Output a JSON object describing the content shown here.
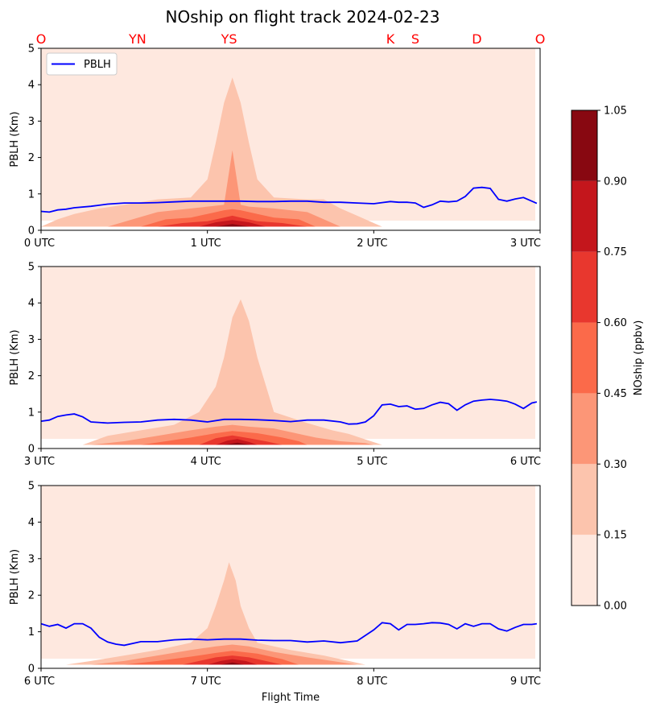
{
  "chart_data": {
    "type": "contour",
    "title": "NOship on flight track 2024-02-23",
    "xlabel": "Flight Time",
    "ylabel": "PBLH (Km)",
    "legend": {
      "entries": [
        "PBLH"
      ],
      "placement": "upper-left"
    },
    "series_color": "#0000ff",
    "stations": {
      "color": "#ff0000",
      "labels": [
        {
          "label": "O",
          "x_hours": 0.0
        },
        {
          "label": "YN",
          "x_hours": 0.58
        },
        {
          "label": "YS",
          "x_hours": 1.13
        },
        {
          "label": "K",
          "x_hours": 2.1
        },
        {
          "label": "S",
          "x_hours": 2.25
        },
        {
          "label": "D",
          "x_hours": 2.62
        },
        {
          "label": "O",
          "x_hours": 3.0
        }
      ]
    },
    "colorbar": {
      "label": "NOship (ppbv)",
      "levels": [
        0.0,
        0.15,
        0.3,
        0.45,
        0.6,
        0.75,
        0.9,
        1.05
      ],
      "tick_labels": [
        "0.00",
        "0.15",
        "0.30",
        "0.45",
        "0.60",
        "0.75",
        "0.90",
        "1.05"
      ],
      "colors": [
        "#fee8df",
        "#fcc4ad",
        "#fc9677",
        "#fb6a4a",
        "#e8372e",
        "#c4161c",
        "#880811"
      ]
    },
    "panels": [
      {
        "x_range_hours": [
          0,
          3
        ],
        "x_ticks": [
          0,
          1,
          2,
          3
        ],
        "x_tick_labels": [
          "0 UTC",
          "1 UTC",
          "2 UTC",
          "3 UTC"
        ],
        "ylim": [
          0,
          5
        ],
        "y_ticks": [
          0,
          1,
          2,
          3,
          4,
          5
        ],
        "y_tick_labels": [
          "0",
          "1",
          "2",
          "3",
          "4",
          "5"
        ],
        "pblh": {
          "x_hours": [
            0.0,
            0.05,
            0.1,
            0.15,
            0.2,
            0.3,
            0.4,
            0.5,
            0.6,
            0.7,
            0.8,
            0.9,
            1.0,
            1.1,
            1.2,
            1.3,
            1.4,
            1.5,
            1.6,
            1.7,
            1.8,
            1.9,
            2.0,
            2.05,
            2.1,
            2.15,
            2.2,
            2.25,
            2.3,
            2.35,
            2.4,
            2.45,
            2.5,
            2.55,
            2.6,
            2.65,
            2.7,
            2.75,
            2.8,
            2.85,
            2.9,
            2.95,
            2.98
          ],
          "values": [
            0.52,
            0.5,
            0.56,
            0.58,
            0.62,
            0.66,
            0.72,
            0.75,
            0.75,
            0.76,
            0.78,
            0.8,
            0.8,
            0.8,
            0.8,
            0.79,
            0.79,
            0.8,
            0.8,
            0.77,
            0.77,
            0.75,
            0.73,
            0.76,
            0.79,
            0.77,
            0.77,
            0.75,
            0.63,
            0.7,
            0.8,
            0.78,
            0.8,
            0.93,
            1.16,
            1.18,
            1.15,
            0.85,
            0.8,
            0.86,
            0.9,
            0.8,
            0.74
          ]
        },
        "contours": [
          {
            "level": 1,
            "x_hours": [
              0.0,
              0.1,
              0.2,
              0.35,
              0.5,
              0.7,
              0.9,
              1.0,
              1.05,
              1.1,
              1.15,
              1.2,
              1.25,
              1.3,
              1.4,
              1.6,
              1.7,
              1.8,
              1.9,
              2.0,
              2.05
            ],
            "values": [
              0.1,
              0.3,
              0.45,
              0.6,
              0.7,
              0.85,
              0.9,
              1.4,
              2.4,
              3.5,
              4.2,
              3.5,
              2.4,
              1.4,
              0.9,
              0.85,
              0.85,
              0.6,
              0.4,
              0.2,
              0.1
            ]
          },
          {
            "level": 2,
            "x_hours": [
              0.4,
              0.55,
              0.7,
              0.9,
              1.1,
              1.15,
              1.2,
              1.25,
              1.4,
              1.6,
              1.7,
              1.8
            ],
            "values": [
              0.1,
              0.3,
              0.5,
              0.6,
              0.7,
              2.2,
              0.7,
              0.65,
              0.6,
              0.5,
              0.3,
              0.1
            ]
          },
          {
            "level": 3,
            "x_hours": [
              0.6,
              0.75,
              0.9,
              1.0,
              1.1,
              1.15,
              1.2,
              1.3,
              1.4,
              1.55,
              1.65
            ],
            "values": [
              0.1,
              0.3,
              0.35,
              0.45,
              0.55,
              0.58,
              0.55,
              0.45,
              0.35,
              0.3,
              0.1
            ]
          },
          {
            "level": 4,
            "x_hours": [
              0.7,
              0.85,
              1.0,
              1.1,
              1.15,
              1.2,
              1.3,
              1.45,
              1.6
            ],
            "values": [
              0.1,
              0.2,
              0.25,
              0.35,
              0.4,
              0.35,
              0.25,
              0.2,
              0.1
            ]
          },
          {
            "level": 5,
            "x_hours": [
              0.95,
              1.05,
              1.15,
              1.25,
              1.35
            ],
            "values": [
              0.1,
              0.22,
              0.28,
              0.22,
              0.1
            ]
          },
          {
            "level": 6,
            "x_hours": [
              1.05,
              1.15,
              1.25
            ],
            "values": [
              0.1,
              0.17,
              0.1
            ]
          }
        ]
      },
      {
        "x_range_hours": [
          3,
          6
        ],
        "x_ticks": [
          3,
          4,
          5,
          6
        ],
        "x_tick_labels": [
          "3 UTC",
          "4 UTC",
          "5 UTC",
          "6 UTC"
        ],
        "ylim": [
          0,
          5
        ],
        "y_ticks": [
          0,
          1,
          2,
          3,
          4,
          5
        ],
        "y_tick_labels": [
          "0",
          "1",
          "2",
          "3",
          "4",
          "5"
        ],
        "pblh": {
          "x_hours": [
            3.0,
            3.05,
            3.1,
            3.15,
            3.2,
            3.25,
            3.3,
            3.4,
            3.5,
            3.6,
            3.7,
            3.8,
            3.9,
            4.0,
            4.1,
            4.2,
            4.3,
            4.4,
            4.5,
            4.6,
            4.7,
            4.8,
            4.85,
            4.9,
            4.95,
            5.0,
            5.05,
            5.1,
            5.15,
            5.2,
            5.25,
            5.3,
            5.35,
            5.4,
            5.45,
            5.5,
            5.55,
            5.6,
            5.65,
            5.7,
            5.75,
            5.8,
            5.85,
            5.9,
            5.95,
            5.98
          ],
          "values": [
            0.75,
            0.78,
            0.88,
            0.92,
            0.95,
            0.87,
            0.73,
            0.7,
            0.72,
            0.73,
            0.78,
            0.8,
            0.78,
            0.73,
            0.8,
            0.8,
            0.79,
            0.77,
            0.74,
            0.78,
            0.78,
            0.73,
            0.67,
            0.68,
            0.73,
            0.9,
            1.2,
            1.22,
            1.15,
            1.17,
            1.08,
            1.1,
            1.2,
            1.27,
            1.23,
            1.05,
            1.2,
            1.3,
            1.33,
            1.35,
            1.33,
            1.3,
            1.22,
            1.1,
            1.25,
            1.28
          ]
        },
        "contours": [
          {
            "level": 1,
            "x_hours": [
              3.25,
              3.4,
              3.6,
              3.8,
              3.95,
              4.05,
              4.1,
              4.15,
              4.2,
              4.25,
              4.3,
              4.4,
              4.6,
              4.75,
              4.85,
              4.95,
              5.05
            ],
            "values": [
              0.1,
              0.35,
              0.5,
              0.65,
              1.0,
              1.7,
              2.5,
              3.6,
              4.1,
              3.5,
              2.5,
              1.0,
              0.7,
              0.5,
              0.4,
              0.25,
              0.1
            ]
          },
          {
            "level": 2,
            "x_hours": [
              3.3,
              3.5,
              3.7,
              3.9,
              4.05,
              4.15,
              4.25,
              4.4,
              4.55,
              4.65,
              4.8,
              4.95,
              5.0
            ],
            "values": [
              0.1,
              0.2,
              0.35,
              0.5,
              0.6,
              0.65,
              0.6,
              0.55,
              0.4,
              0.3,
              0.2,
              0.15,
              0.1
            ]
          },
          {
            "level": 3,
            "x_hours": [
              3.6,
              3.75,
              3.9,
              4.05,
              4.15,
              4.3,
              4.45,
              4.55,
              4.6
            ],
            "values": [
              0.1,
              0.2,
              0.3,
              0.42,
              0.48,
              0.42,
              0.3,
              0.2,
              0.1
            ]
          },
          {
            "level": 4,
            "x_hours": [
              3.95,
              4.05,
              4.15,
              4.25,
              4.35,
              4.45
            ],
            "values": [
              0.1,
              0.28,
              0.36,
              0.28,
              0.2,
              0.1
            ]
          },
          {
            "level": 5,
            "x_hours": [
              4.05,
              4.12,
              4.18,
              4.25,
              4.3
            ],
            "values": [
              0.1,
              0.22,
              0.26,
              0.18,
              0.1
            ]
          },
          {
            "level": 6,
            "x_hours": [
              4.1,
              4.18,
              4.26
            ],
            "values": [
              0.1,
              0.16,
              0.1
            ]
          }
        ]
      },
      {
        "x_range_hours": [
          6,
          9
        ],
        "x_ticks": [
          6,
          7,
          8,
          9
        ],
        "x_tick_labels": [
          "6 UTC",
          "7 UTC",
          "8 UTC",
          "9 UTC"
        ],
        "ylim": [
          0,
          5
        ],
        "y_ticks": [
          0,
          1,
          2,
          3,
          4,
          5
        ],
        "y_tick_labels": [
          "0",
          "1",
          "2",
          "3",
          "4",
          "5"
        ],
        "pblh": {
          "x_hours": [
            6.0,
            6.05,
            6.1,
            6.15,
            6.2,
            6.25,
            6.3,
            6.35,
            6.4,
            6.45,
            6.5,
            6.6,
            6.7,
            6.8,
            6.9,
            7.0,
            7.1,
            7.2,
            7.3,
            7.4,
            7.5,
            7.6,
            7.7,
            7.8,
            7.9,
            7.95,
            8.0,
            8.05,
            8.1,
            8.15,
            8.2,
            8.25,
            8.3,
            8.35,
            8.4,
            8.45,
            8.5,
            8.55,
            8.6,
            8.65,
            8.7,
            8.75,
            8.8,
            8.85,
            8.9,
            8.95,
            8.98
          ],
          "values": [
            1.22,
            1.15,
            1.2,
            1.1,
            1.22,
            1.22,
            1.1,
            0.85,
            0.72,
            0.66,
            0.63,
            0.73,
            0.73,
            0.78,
            0.8,
            0.78,
            0.8,
            0.8,
            0.77,
            0.76,
            0.76,
            0.72,
            0.75,
            0.7,
            0.75,
            0.9,
            1.05,
            1.25,
            1.22,
            1.05,
            1.2,
            1.2,
            1.22,
            1.25,
            1.24,
            1.2,
            1.08,
            1.22,
            1.15,
            1.22,
            1.22,
            1.08,
            1.02,
            1.12,
            1.2,
            1.2,
            1.22
          ]
        },
        "contours": [
          {
            "level": 1,
            "x_hours": [
              6.15,
              6.3,
              6.5,
              6.7,
              6.9,
              7.0,
              7.05,
              7.1,
              7.13,
              7.17,
              7.2,
              7.25,
              7.3,
              7.5,
              7.7,
              7.85,
              7.95
            ],
            "values": [
              0.1,
              0.2,
              0.35,
              0.5,
              0.7,
              1.1,
              1.7,
              2.4,
              2.9,
              2.4,
              1.7,
              1.1,
              0.7,
              0.5,
              0.35,
              0.2,
              0.1
            ]
          },
          {
            "level": 2,
            "x_hours": [
              6.3,
              6.5,
              6.7,
              6.9,
              7.05,
              7.15,
              7.25,
              7.4,
              7.6,
              7.75,
              7.9
            ],
            "values": [
              0.1,
              0.2,
              0.35,
              0.5,
              0.6,
              0.65,
              0.6,
              0.45,
              0.3,
              0.2,
              0.1
            ]
          },
          {
            "level": 3,
            "x_hours": [
              6.5,
              6.7,
              6.9,
              7.05,
              7.15,
              7.3,
              7.45,
              7.55
            ],
            "values": [
              0.1,
              0.2,
              0.32,
              0.42,
              0.48,
              0.4,
              0.25,
              0.1
            ]
          },
          {
            "level": 4,
            "x_hours": [
              6.85,
              6.95,
              7.05,
              7.15,
              7.25,
              7.35,
              7.45
            ],
            "values": [
              0.1,
              0.2,
              0.3,
              0.35,
              0.3,
              0.2,
              0.1
            ]
          },
          {
            "level": 5,
            "x_hours": [
              7.0,
              7.08,
              7.15,
              7.23,
              7.3
            ],
            "values": [
              0.1,
              0.2,
              0.25,
              0.2,
              0.1
            ]
          },
          {
            "level": 6,
            "x_hours": [
              7.08,
              7.15,
              7.22
            ],
            "values": [
              0.1,
              0.16,
              0.1
            ]
          }
        ]
      }
    ]
  }
}
